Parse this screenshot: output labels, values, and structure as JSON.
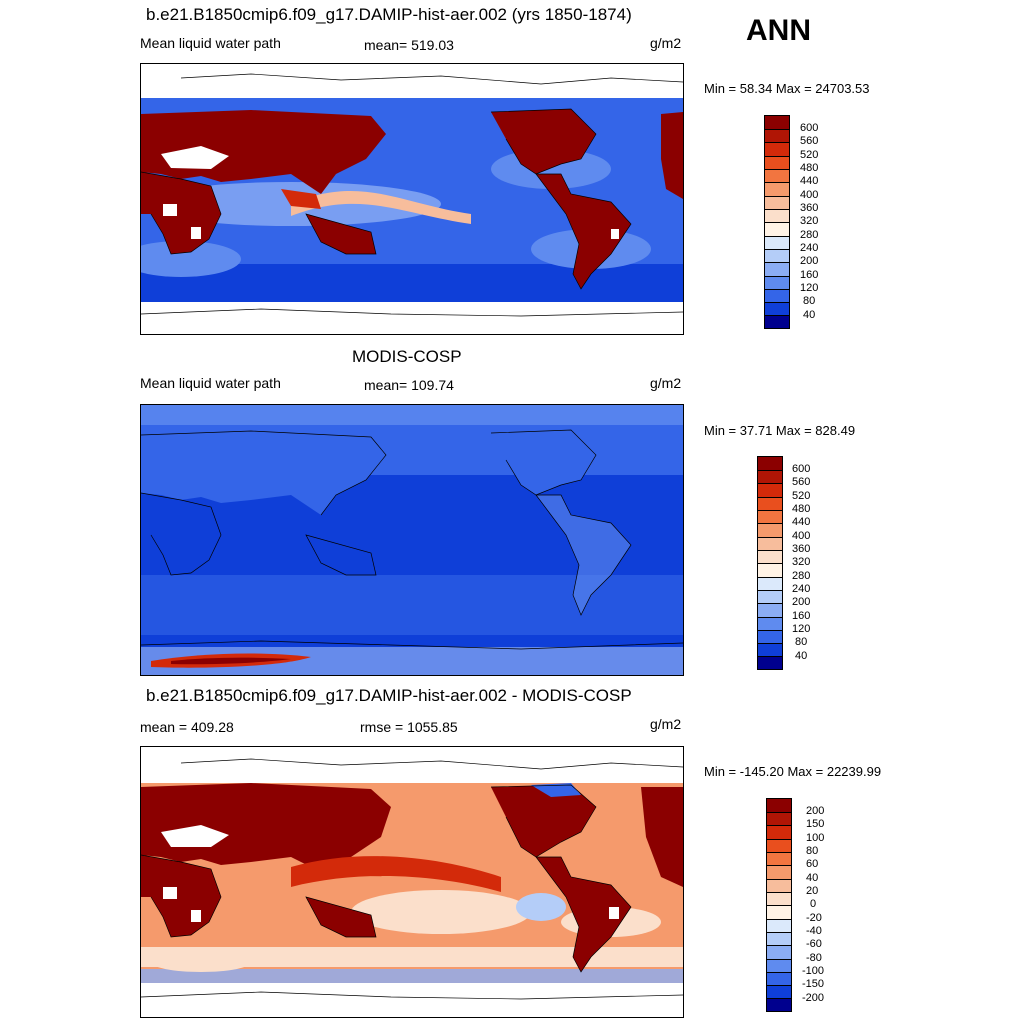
{
  "season": "ANN",
  "panels": [
    {
      "id": "model",
      "title": "b.e21.B1850cmip6.f09_g17.DAMIP-hist-aer.002 (yrs 1850-1874)",
      "left_label": "Mean liquid water path",
      "center_label": "mean= 519.03",
      "units": "g/m2",
      "minmax": "Min =  58.34 Max = 24703.53",
      "scale": "abs",
      "colorbar": {
        "labels": [
          "600",
          "560",
          "520",
          "480",
          "440",
          "400",
          "360",
          "320",
          "280",
          "240",
          "200",
          "160",
          "120",
          "80",
          "40"
        ],
        "colors": [
          "#8b0000",
          "#b01505",
          "#d32a0a",
          "#e94f1e",
          "#f27540",
          "#f59a6c",
          "#f7bd9c",
          "#fbdfcb",
          "#fff3e6",
          "#dbe9fb",
          "#b4cdf8",
          "#8badf4",
          "#5f8bef",
          "#3465e8",
          "#0f3fd8",
          "#00008e"
        ]
      }
    },
    {
      "id": "obs",
      "title": "MODIS-COSP",
      "left_label": "Mean liquid water path",
      "center_label": "mean= 109.74",
      "units": "g/m2",
      "minmax": "Min =  37.71 Max = 828.49",
      "scale": "abs",
      "colorbar": {
        "labels": [
          "600",
          "560",
          "520",
          "480",
          "440",
          "400",
          "360",
          "320",
          "280",
          "240",
          "200",
          "160",
          "120",
          "80",
          "40"
        ],
        "colors": [
          "#8b0000",
          "#b01505",
          "#d32a0a",
          "#e94f1e",
          "#f27540",
          "#f59a6c",
          "#f7bd9c",
          "#fbdfcb",
          "#fff3e6",
          "#dbe9fb",
          "#b4cdf8",
          "#8badf4",
          "#5f8bef",
          "#3465e8",
          "#0f3fd8",
          "#00008e"
        ]
      }
    },
    {
      "id": "diff",
      "title": "b.e21.B1850cmip6.f09_g17.DAMIP-hist-aer.002 - MODIS-COSP",
      "left_label": "mean = 409.28",
      "center_label": "rmse = 1055.85",
      "units": "g/m2",
      "minmax": "Min = -145.20 Max = 22239.99",
      "scale": "diff",
      "colorbar": {
        "labels": [
          "200",
          "150",
          "100",
          "80",
          "60",
          "40",
          "20",
          "0",
          "-20",
          "-40",
          "-60",
          "-80",
          "-100",
          "-150",
          "-200"
        ],
        "colors": [
          "#8b0000",
          "#b01505",
          "#d32a0a",
          "#e94f1e",
          "#f27540",
          "#f59a6c",
          "#f7bd9c",
          "#fbdfcb",
          "#fff3e6",
          "#dbe9fb",
          "#b4cdf8",
          "#8badf4",
          "#5f8bef",
          "#3465e8",
          "#0f3fd8",
          "#00008e"
        ]
      }
    }
  ]
}
